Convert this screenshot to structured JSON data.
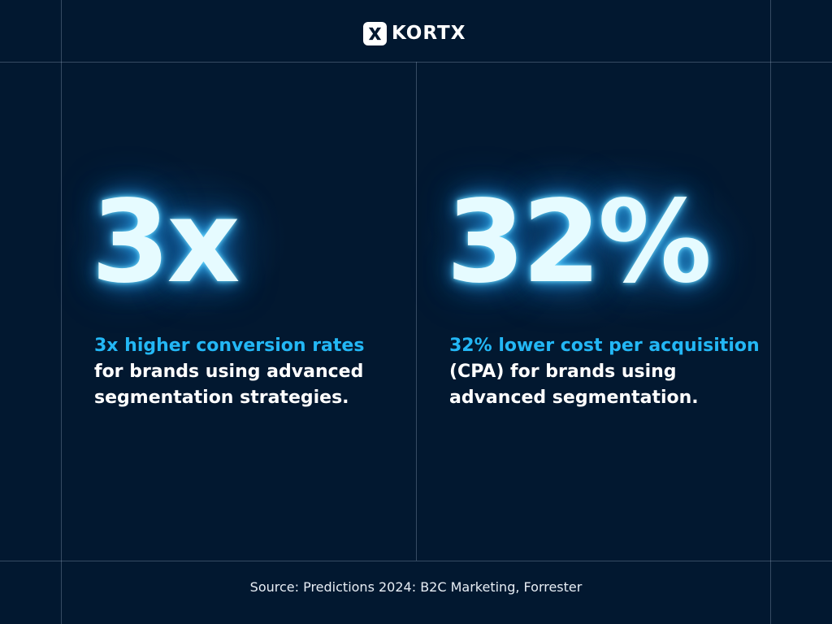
{
  "brand": {
    "name": "KORTX",
    "mark_icon": "kortx-x-logo-icon"
  },
  "colors": {
    "background": "#021830",
    "accent": "#23b7f5",
    "glow": "#e6fbff",
    "grid_lines": "#8ca0b9"
  },
  "stats": [
    {
      "value": "3x",
      "highlight": "3x higher conversion rates",
      "lines": [
        "for brands using advanced",
        "segmentation strategies."
      ]
    },
    {
      "value": "32%",
      "highlight": "32% lower cost per acquisition",
      "lines": [
        "(CPA) for brands using",
        "advanced segmentation."
      ]
    }
  ],
  "footer": {
    "source": "Source: Predictions 2024: B2C Marketing, Forrester"
  }
}
